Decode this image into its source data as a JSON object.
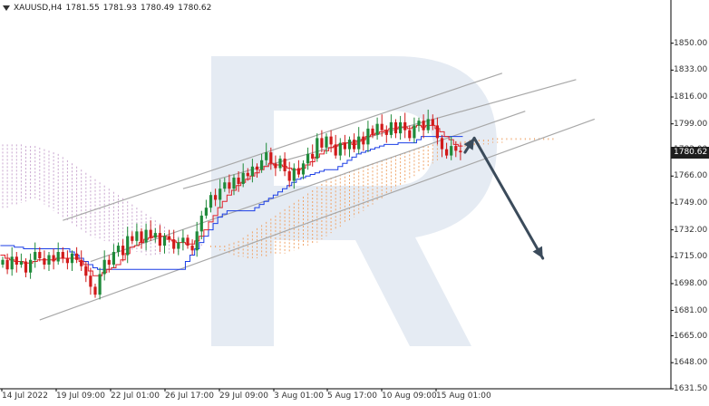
{
  "header": {
    "symbol": "XAUUSD,H4",
    "open": "1781.55",
    "high": "1781.93",
    "low": "1780.49",
    "close": "1780.62"
  },
  "colors": {
    "bull": "#1f8a3a",
    "bear": "#d11a1a",
    "tenkan": "#e0212a",
    "kijun": "#1b3ee6",
    "kumo_bull": "#f0a56a",
    "kumo_bear": "#c9a6cf",
    "channel": "#a8a8a8",
    "arrow": "#3b4b5b",
    "watermark": "#e5ebf3",
    "axis": "#000000"
  },
  "chart_data": {
    "type": "candlestick",
    "instrument": "XAUUSD",
    "timeframe": "H4",
    "ylim": [
      1631.5,
      1867
    ],
    "yticks": [
      "1850.00",
      "1833.00",
      "1816.00",
      "1799.00",
      "1783.00",
      "1766.00",
      "1749.00",
      "1732.00",
      "1715.00",
      "1698.00",
      "1681.00",
      "1665.00",
      "1648.00",
      "1631.50"
    ],
    "xticks": [
      "14 Jul 2022",
      "19 Jul 09:00",
      "22 Jul 01:00",
      "26 Jul 17:00",
      "29 Jul 09:00",
      "3 Aug 01:00",
      "5 Aug 17:00",
      "10 Aug 09:00",
      "15 Aug 01:00"
    ],
    "current_price": "1780.62",
    "closes": [
      1713,
      1707,
      1715,
      1710,
      1712,
      1705,
      1713,
      1718,
      1714,
      1710,
      1716,
      1712,
      1718,
      1714,
      1711,
      1717,
      1713,
      1709,
      1703,
      1696,
      1691,
      1704,
      1713,
      1710,
      1718,
      1722,
      1716,
      1728,
      1725,
      1731,
      1724,
      1732,
      1727,
      1730,
      1722,
      1728,
      1726,
      1720,
      1724,
      1727,
      1722,
      1719,
      1731,
      1741,
      1746,
      1754,
      1751,
      1758,
      1762,
      1758,
      1765,
      1761,
      1768,
      1766,
      1772,
      1770,
      1776,
      1781,
      1774,
      1771,
      1777,
      1769,
      1763,
      1771,
      1767,
      1774,
      1780,
      1777,
      1790,
      1784,
      1791,
      1786,
      1779,
      1787,
      1783,
      1789,
      1783,
      1791,
      1786,
      1796,
      1792,
      1799,
      1795,
      1792,
      1800,
      1793,
      1800,
      1795,
      1790,
      1798,
      1801,
      1795,
      1802,
      1798,
      1790,
      1783,
      1779,
      1785,
      1782,
      1781
    ],
    "tenkan": [
      1716,
      1714,
      1713,
      1712,
      1712,
      1711,
      1711,
      1712,
      1713,
      1713,
      1713,
      1713,
      1714,
      1714,
      1714,
      1714,
      1714,
      1712,
      1710,
      1706,
      1703,
      1703,
      1705,
      1707,
      1708,
      1710,
      1713,
      1717,
      1721,
      1722,
      1724,
      1726,
      1727,
      1728,
      1728,
      1728,
      1726,
      1725,
      1724,
      1724,
      1723,
      1723,
      1725,
      1728,
      1732,
      1737,
      1741,
      1746,
      1750,
      1754,
      1757,
      1760,
      1762,
      1764,
      1766,
      1768,
      1770,
      1772,
      1774,
      1773,
      1773,
      1772,
      1771,
      1770,
      1770,
      1771,
      1773,
      1775,
      1778,
      1780,
      1782,
      1784,
      1785,
      1786,
      1787,
      1787,
      1786,
      1788,
      1789,
      1791,
      1792,
      1793,
      1794,
      1795,
      1796,
      1796,
      1797,
      1797,
      1796,
      1797,
      1798,
      1797,
      1798,
      1798,
      1796,
      1794,
      1791,
      1789,
      1786,
      1785
    ],
    "kijun": [
      1722,
      1722,
      1722,
      1721,
      1721,
      1720,
      1720,
      1720,
      1720,
      1720,
      1720,
      1720,
      1720,
      1720,
      1720,
      1718,
      1716,
      1714,
      1712,
      1710,
      1708,
      1707,
      1707,
      1707,
      1707,
      1707,
      1707,
      1707,
      1707,
      1707,
      1707,
      1707,
      1707,
      1707,
      1707,
      1707,
      1707,
      1707,
      1707,
      1707,
      1712,
      1716,
      1720,
      1724,
      1728,
      1732,
      1736,
      1740,
      1742,
      1744,
      1744,
      1744,
      1744,
      1744,
      1744,
      1746,
      1748,
      1750,
      1752,
      1754,
      1756,
      1758,
      1760,
      1762,
      1764,
      1765,
      1766,
      1767,
      1768,
      1769,
      1770,
      1770,
      1770,
      1772,
      1774,
      1776,
      1778,
      1780,
      1781,
      1782,
      1783,
      1784,
      1785,
      1786,
      1786,
      1786,
      1787,
      1787,
      1787,
      1787,
      1789,
      1791,
      1791,
      1791,
      1791,
      1791,
      1791,
      1791,
      1791,
      1791
    ],
    "kumo": {
      "span_a": [
        1745,
        1746,
        1747,
        1748,
        1749,
        1750,
        1751,
        1752,
        1750,
        1748,
        1746,
        1744,
        1742,
        1740,
        1738,
        1736,
        1734,
        1732,
        1730,
        1728,
        1727,
        1726,
        1725,
        1724,
        1723,
        1722,
        1721,
        1720,
        1719,
        1718,
        1717,
        1716,
        1716,
        1716,
        1716,
        1717,
        1717,
        1718,
        1718,
        1719,
        1720,
        1720,
        1720,
        1721,
        1722,
        1722,
        1722,
        1722,
        1722,
        1723,
        1724,
        1725,
        1727,
        1729,
        1731,
        1733,
        1735,
        1737,
        1739,
        1741,
        1743,
        1745,
        1747,
        1749,
        1751,
        1753,
        1755,
        1757,
        1759,
        1761,
        1763,
        1765,
        1766,
        1767,
        1768,
        1769,
        1770,
        1771,
        1772,
        1773,
        1774,
        1775,
        1776,
        1777,
        1778,
        1779,
        1780,
        1781,
        1782,
        1783,
        1784,
        1785,
        1785,
        1786,
        1786,
        1787,
        1787,
        1787,
        1788,
        1788,
        1788,
        1789,
        1789,
        1789,
        1789,
        1789,
        1790,
        1790,
        1790,
        1790,
        1790,
        1790,
        1790,
        1790,
        1790,
        1790,
        1790,
        1790,
        1790,
        1790,
        1790,
        1790,
        1790,
        1790,
        1790
      ],
      "span_b": [
        1786,
        1786,
        1786,
        1786,
        1786,
        1785,
        1785,
        1785,
        1784,
        1783,
        1782,
        1781,
        1780,
        1778,
        1776,
        1774,
        1772,
        1770,
        1768,
        1766,
        1764,
        1762,
        1760,
        1758,
        1756,
        1754,
        1752,
        1750,
        1748,
        1746,
        1744,
        1742,
        1740,
        1738,
        1736,
        1734,
        1732,
        1730,
        1728,
        1727,
        1726,
        1725,
        1724,
        1723,
        1722,
        1721,
        1720,
        1719,
        1718,
        1717,
        1716,
        1715,
        1715,
        1714,
        1714,
        1714,
        1715,
        1715,
        1716,
        1716,
        1717,
        1717,
        1718,
        1719,
        1720,
        1721,
        1722,
        1723,
        1724,
        1726,
        1728,
        1730,
        1732,
        1734,
        1736,
        1738,
        1740,
        1742,
        1744,
        1746,
        1748,
        1750,
        1752,
        1754,
        1756,
        1758,
        1760,
        1762,
        1764,
        1766,
        1768,
        1770,
        1772,
        1774,
        1776,
        1778,
        1779,
        1780,
        1781,
        1782,
        1783,
        1784,
        1785,
        1785,
        1786,
        1786,
        1787,
        1787,
        1787,
        1788,
        1788,
        1788,
        1788,
        1788,
        1788,
        1788,
        1788,
        1788,
        1788,
        1788,
        1788,
        1788,
        1788,
        1788,
        1788
      ]
    },
    "channel_lines": [
      {
        "from": {
          "bar": 13,
          "price": 1738
        },
        "to": {
          "bar": 108,
          "price": 1831
        }
      },
      {
        "from": {
          "bar": 8,
          "price": 1675
        },
        "to": {
          "bar": 128,
          "price": 1802
        }
      },
      {
        "from": {
          "bar": 39,
          "price": 1758
        },
        "to": {
          "bar": 124,
          "price": 1827
        }
      },
      {
        "from": {
          "bar": 19,
          "price": 1712
        },
        "to": {
          "bar": 113,
          "price": 1807
        }
      }
    ],
    "forecast_arrows": [
      {
        "from": {
          "bar": 99,
          "price": 1781
        },
        "to": {
          "bar": 101,
          "price": 1790
        }
      },
      {
        "from": {
          "bar": 101,
          "price": 1790
        },
        "to": {
          "bar": 107,
          "price": 1714
        }
      }
    ],
    "grid": false
  }
}
